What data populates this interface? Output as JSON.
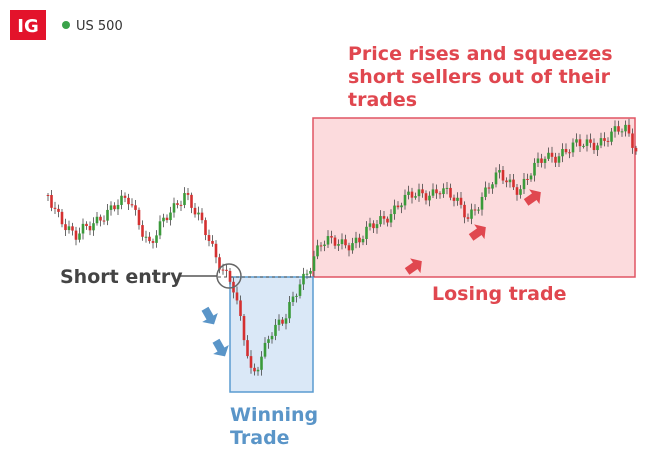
{
  "logo": "IG",
  "instrument": "US 500",
  "annotations": {
    "short_entry": "Short entry",
    "winning_trade": [
      "Winning",
      "Trade"
    ],
    "squeeze": [
      "Price rises and squeezes",
      "short sellers out of their",
      "trades"
    ],
    "losing_trade": "Losing trade"
  }
}
